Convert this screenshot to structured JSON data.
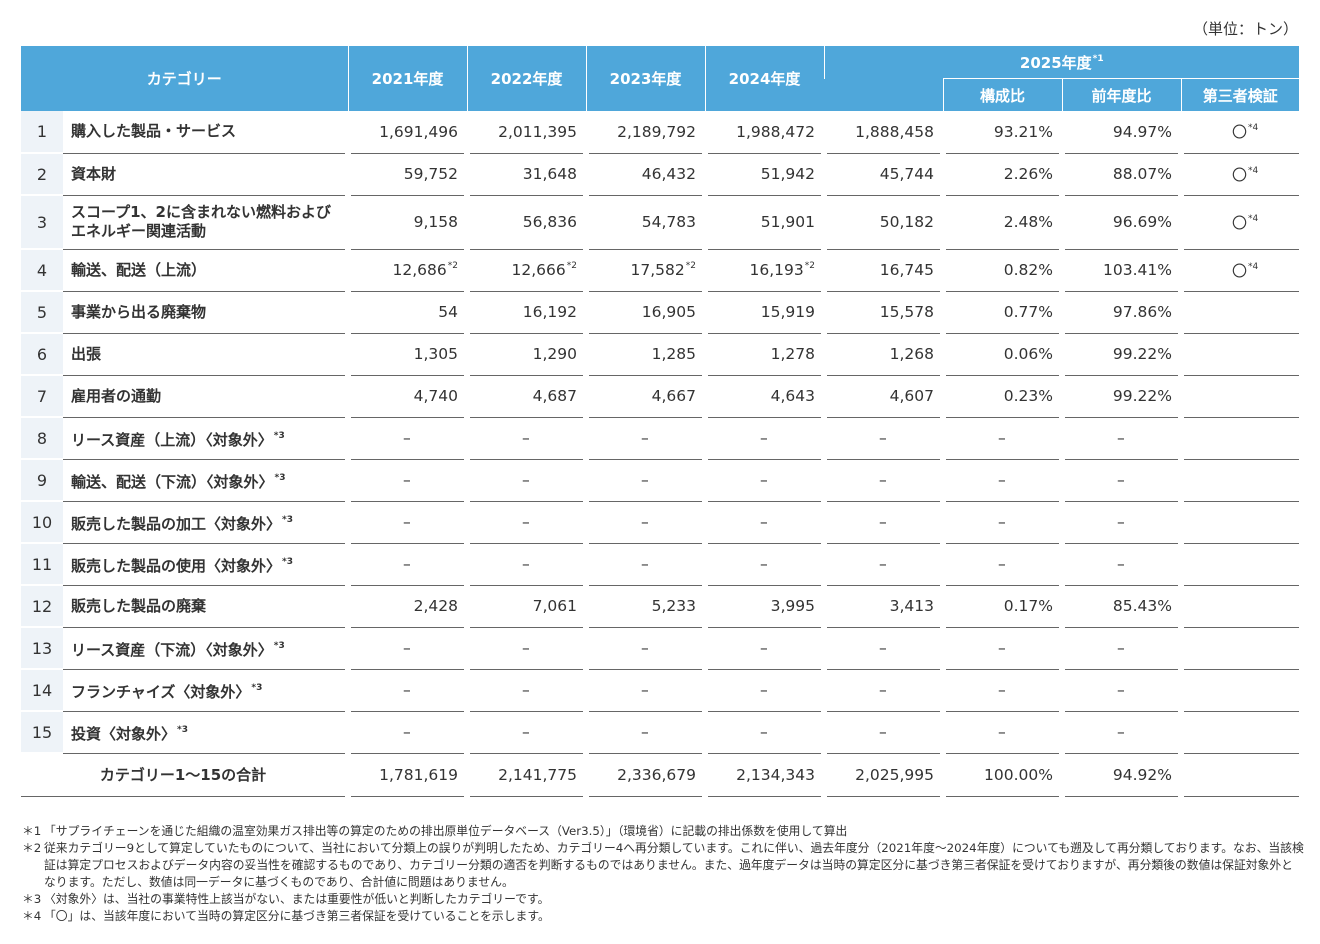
{
  "unit_label": "（単位：トン）",
  "headers": {
    "category": "カテゴリー",
    "years": [
      "2021年度",
      "2022年度",
      "2023年度",
      "2024年度"
    ],
    "y2025": "2025年度",
    "y2025_mark": "*1",
    "sub": [
      "構成比",
      "前年度比",
      "第三者検証"
    ]
  },
  "rows": [
    {
      "no": "1",
      "name": "購入した製品・サービス",
      "mark": "",
      "v": [
        "1,691,496",
        "2,011,395",
        "2,189,792",
        "1,988,472",
        "1,888,458"
      ],
      "vm": [
        "",
        "",
        "",
        ""
      ],
      "ratio": "93.21%",
      "yoy": "94.97%",
      "check": "〇",
      "check_mark": "*4"
    },
    {
      "no": "2",
      "name": "資本財",
      "mark": "",
      "v": [
        "59,752",
        "31,648",
        "46,432",
        "51,942",
        "45,744"
      ],
      "vm": [
        "",
        "",
        "",
        ""
      ],
      "ratio": "2.26%",
      "yoy": "88.07%",
      "check": "〇",
      "check_mark": "*4"
    },
    {
      "no": "3",
      "name": "スコープ1、2に含まれない燃料および エネルギー関連活動",
      "mark": "",
      "v": [
        "9,158",
        "56,836",
        "54,783",
        "51,901",
        "50,182"
      ],
      "vm": [
        "",
        "",
        "",
        ""
      ],
      "ratio": "2.48%",
      "yoy": "96.69%",
      "check": "〇",
      "check_mark": "*4"
    },
    {
      "no": "4",
      "name": "輸送、配送（上流）",
      "mark": "",
      "v": [
        "12,686",
        "12,666",
        "17,582",
        "16,193",
        "16,745"
      ],
      "vm": [
        "*2",
        "*2",
        "*2",
        "*2"
      ],
      "ratio": "0.82%",
      "yoy": "103.41%",
      "check": "〇",
      "check_mark": "*4"
    },
    {
      "no": "5",
      "name": "事業から出る廃棄物",
      "mark": "",
      "v": [
        "54",
        "16,192",
        "16,905",
        "15,919",
        "15,578"
      ],
      "vm": [
        "",
        "",
        "",
        ""
      ],
      "ratio": "0.77%",
      "yoy": "97.86%",
      "check": "",
      "check_mark": ""
    },
    {
      "no": "6",
      "name": "出張",
      "mark": "",
      "v": [
        "1,305",
        "1,290",
        "1,285",
        "1,278",
        "1,268"
      ],
      "vm": [
        "",
        "",
        "",
        ""
      ],
      "ratio": "0.06%",
      "yoy": "99.22%",
      "check": "",
      "check_mark": ""
    },
    {
      "no": "7",
      "name": "雇用者の通勤",
      "mark": "",
      "v": [
        "4,740",
        "4,687",
        "4,667",
        "4,643",
        "4,607"
      ],
      "vm": [
        "",
        "",
        "",
        ""
      ],
      "ratio": "0.23%",
      "yoy": "99.22%",
      "check": "",
      "check_mark": ""
    },
    {
      "no": "8",
      "name": "リース資産（上流）〈対象外〉",
      "mark": "*3",
      "v": [
        "–",
        "–",
        "–",
        "–",
        "–"
      ],
      "vm": [
        "",
        "",
        "",
        ""
      ],
      "ratio": "–",
      "yoy": "–",
      "check": "",
      "check_mark": ""
    },
    {
      "no": "9",
      "name": "輸送、配送（下流）〈対象外〉",
      "mark": "*3",
      "v": [
        "–",
        "–",
        "–",
        "–",
        "–"
      ],
      "vm": [
        "",
        "",
        "",
        ""
      ],
      "ratio": "–",
      "yoy": "–",
      "check": "",
      "check_mark": ""
    },
    {
      "no": "10",
      "name": "販売した製品の加工〈対象外〉",
      "mark": "*3",
      "v": [
        "–",
        "–",
        "–",
        "–",
        "–"
      ],
      "vm": [
        "",
        "",
        "",
        ""
      ],
      "ratio": "–",
      "yoy": "–",
      "check": "",
      "check_mark": ""
    },
    {
      "no": "11",
      "name": "販売した製品の使用〈対象外〉",
      "mark": "*3",
      "v": [
        "–",
        "–",
        "–",
        "–",
        "–"
      ],
      "vm": [
        "",
        "",
        "",
        ""
      ],
      "ratio": "–",
      "yoy": "–",
      "check": "",
      "check_mark": ""
    },
    {
      "no": "12",
      "name": "販売した製品の廃棄",
      "mark": "",
      "v": [
        "2,428",
        "7,061",
        "5,233",
        "3,995",
        "3,413"
      ],
      "vm": [
        "",
        "",
        "",
        ""
      ],
      "ratio": "0.17%",
      "yoy": "85.43%",
      "check": "",
      "check_mark": ""
    },
    {
      "no": "13",
      "name": "リース資産（下流）〈対象外〉",
      "mark": "*3",
      "v": [
        "–",
        "–",
        "–",
        "–",
        "–"
      ],
      "vm": [
        "",
        "",
        "",
        ""
      ],
      "ratio": "–",
      "yoy": "–",
      "check": "",
      "check_mark": ""
    },
    {
      "no": "14",
      "name": "フランチャイズ〈対象外〉",
      "mark": "*3",
      "v": [
        "–",
        "–",
        "–",
        "–",
        "–"
      ],
      "vm": [
        "",
        "",
        "",
        ""
      ],
      "ratio": "–",
      "yoy": "–",
      "check": "",
      "check_mark": ""
    },
    {
      "no": "15",
      "name": "投資〈対象外〉",
      "mark": "*3",
      "v": [
        "–",
        "–",
        "–",
        "–",
        "–"
      ],
      "vm": [
        "",
        "",
        "",
        ""
      ],
      "ratio": "–",
      "yoy": "–",
      "check": "",
      "check_mark": ""
    }
  ],
  "total": {
    "label": "カテゴリー1～15の合計",
    "v": [
      "1,781,619",
      "2,141,775",
      "2,336,679",
      "2,134,343",
      "2,025,995"
    ],
    "ratio": "100.00%",
    "yoy": "94.92%"
  },
  "notes": [
    {
      "mark": "＊1",
      "text": "「サプライチェーンを通じた組織の温室効果ガス排出等の算定のための排出原単位データベース（Ver3.5）」（環境省）に記載の排出係数を使用して算出"
    },
    {
      "mark": "＊2",
      "text": "従来カテゴリー9として算定していたものについて、当社において分類上の誤りが判明したため、カテゴリー4へ再分類しています。これに伴い、過去年度分（2021年度～2024年度）についても遡及して再分類しております。なお、当該検証は算定プロセスおよびデータ内容の妥当性を確認するものであり、カテゴリー分類の適否を判断するものではありません。また、過年度データは当時の算定区分に基づき第三者保証を受けておりますが、再分類後の数値は保証対象外となります。ただし、数値は同一データに基づくものであり、合計値に問題はありません。"
    },
    {
      "mark": "＊3",
      "text": "〈対象外〉は、当社の事業特性上該当がない、または重要性が低いと判断したカテゴリーです。"
    },
    {
      "mark": "＊4",
      "text": "「〇」は、当該年度において当時の算定区分に基づき第三者保証を受けていることを示します。"
    }
  ]
}
